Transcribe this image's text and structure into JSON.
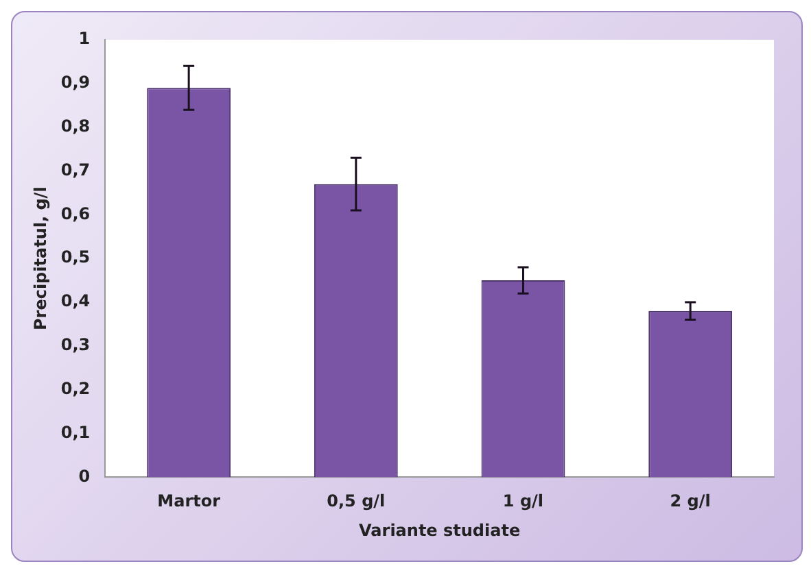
{
  "chart_data": {
    "type": "bar",
    "xlabel": "Variante studiate",
    "ylabel": "Precipitatul, g/l",
    "categories": [
      "Martor",
      "0,5 g/l",
      "1 g/l",
      "2 g/l"
    ],
    "values": [
      0.89,
      0.67,
      0.45,
      0.38
    ],
    "errors": [
      0.05,
      0.06,
      0.03,
      0.02
    ],
    "color": "#7a55a6",
    "ylim": [
      0,
      1
    ],
    "yticks": [
      0,
      {
        "value": 0.1,
        "label": "0,1"
      },
      {
        "value": 0.2,
        "label": "0,2"
      },
      {
        "value": 0.3,
        "label": "0,3"
      },
      {
        "value": 0.4,
        "label": "0,4"
      },
      {
        "value": 0.5,
        "label": "0,5"
      },
      {
        "value": 0.6,
        "label": "0,6"
      },
      {
        "value": 0.7,
        "label": "0,7"
      },
      {
        "value": 0.8,
        "label": "0,8"
      },
      {
        "value": 0.9,
        "label": "0,9"
      },
      1
    ],
    "grid": false,
    "legend": false
  }
}
